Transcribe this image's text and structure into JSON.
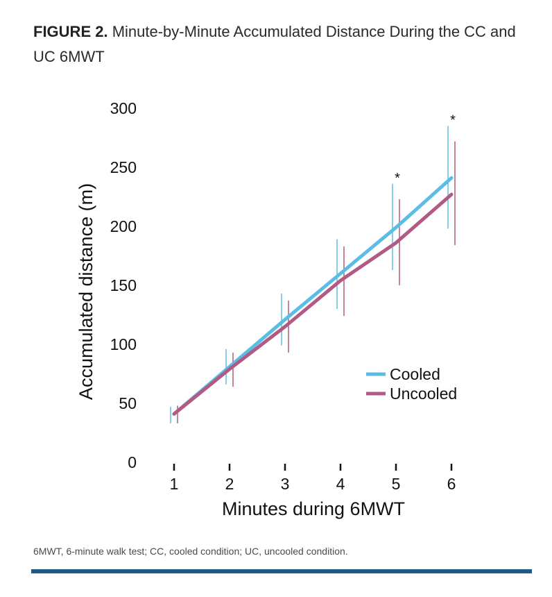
{
  "figure": {
    "label": "FIGURE 2.",
    "title": "Minute-by-Minute Accumulated Distance During the CC and UC 6MWT",
    "caption": "6MWT, 6-minute walk test; CC, cooled condition; UC, uncooled condition."
  },
  "chart_data": {
    "type": "line",
    "xlabel": "Minutes during 6MWT",
    "ylabel": "Accumulated distance (m)",
    "x": [
      1,
      2,
      3,
      4,
      5,
      6
    ],
    "ylim": [
      0,
      300
    ],
    "yticks": [
      0,
      50,
      100,
      150,
      200,
      250,
      300
    ],
    "grid": false,
    "legend_position": "right",
    "series": [
      {
        "name": "Cooled",
        "color": "#5bbde4",
        "values": [
          41,
          81,
          121,
          160,
          199,
          241
        ],
        "error_low": [
          33,
          66,
          99,
          130,
          163,
          198
        ],
        "error_high": [
          47,
          96,
          143,
          189,
          236,
          285
        ]
      },
      {
        "name": "Uncooled",
        "color": "#b05a84",
        "values": [
          41,
          79,
          115,
          154,
          186,
          227
        ],
        "error_low": [
          33,
          64,
          93,
          124,
          150,
          184
        ],
        "error_high": [
          48,
          93,
          137,
          183,
          223,
          272
        ]
      }
    ],
    "annotations": [
      {
        "text": "*",
        "x": 5
      },
      {
        "text": "*",
        "x": 6
      }
    ]
  }
}
